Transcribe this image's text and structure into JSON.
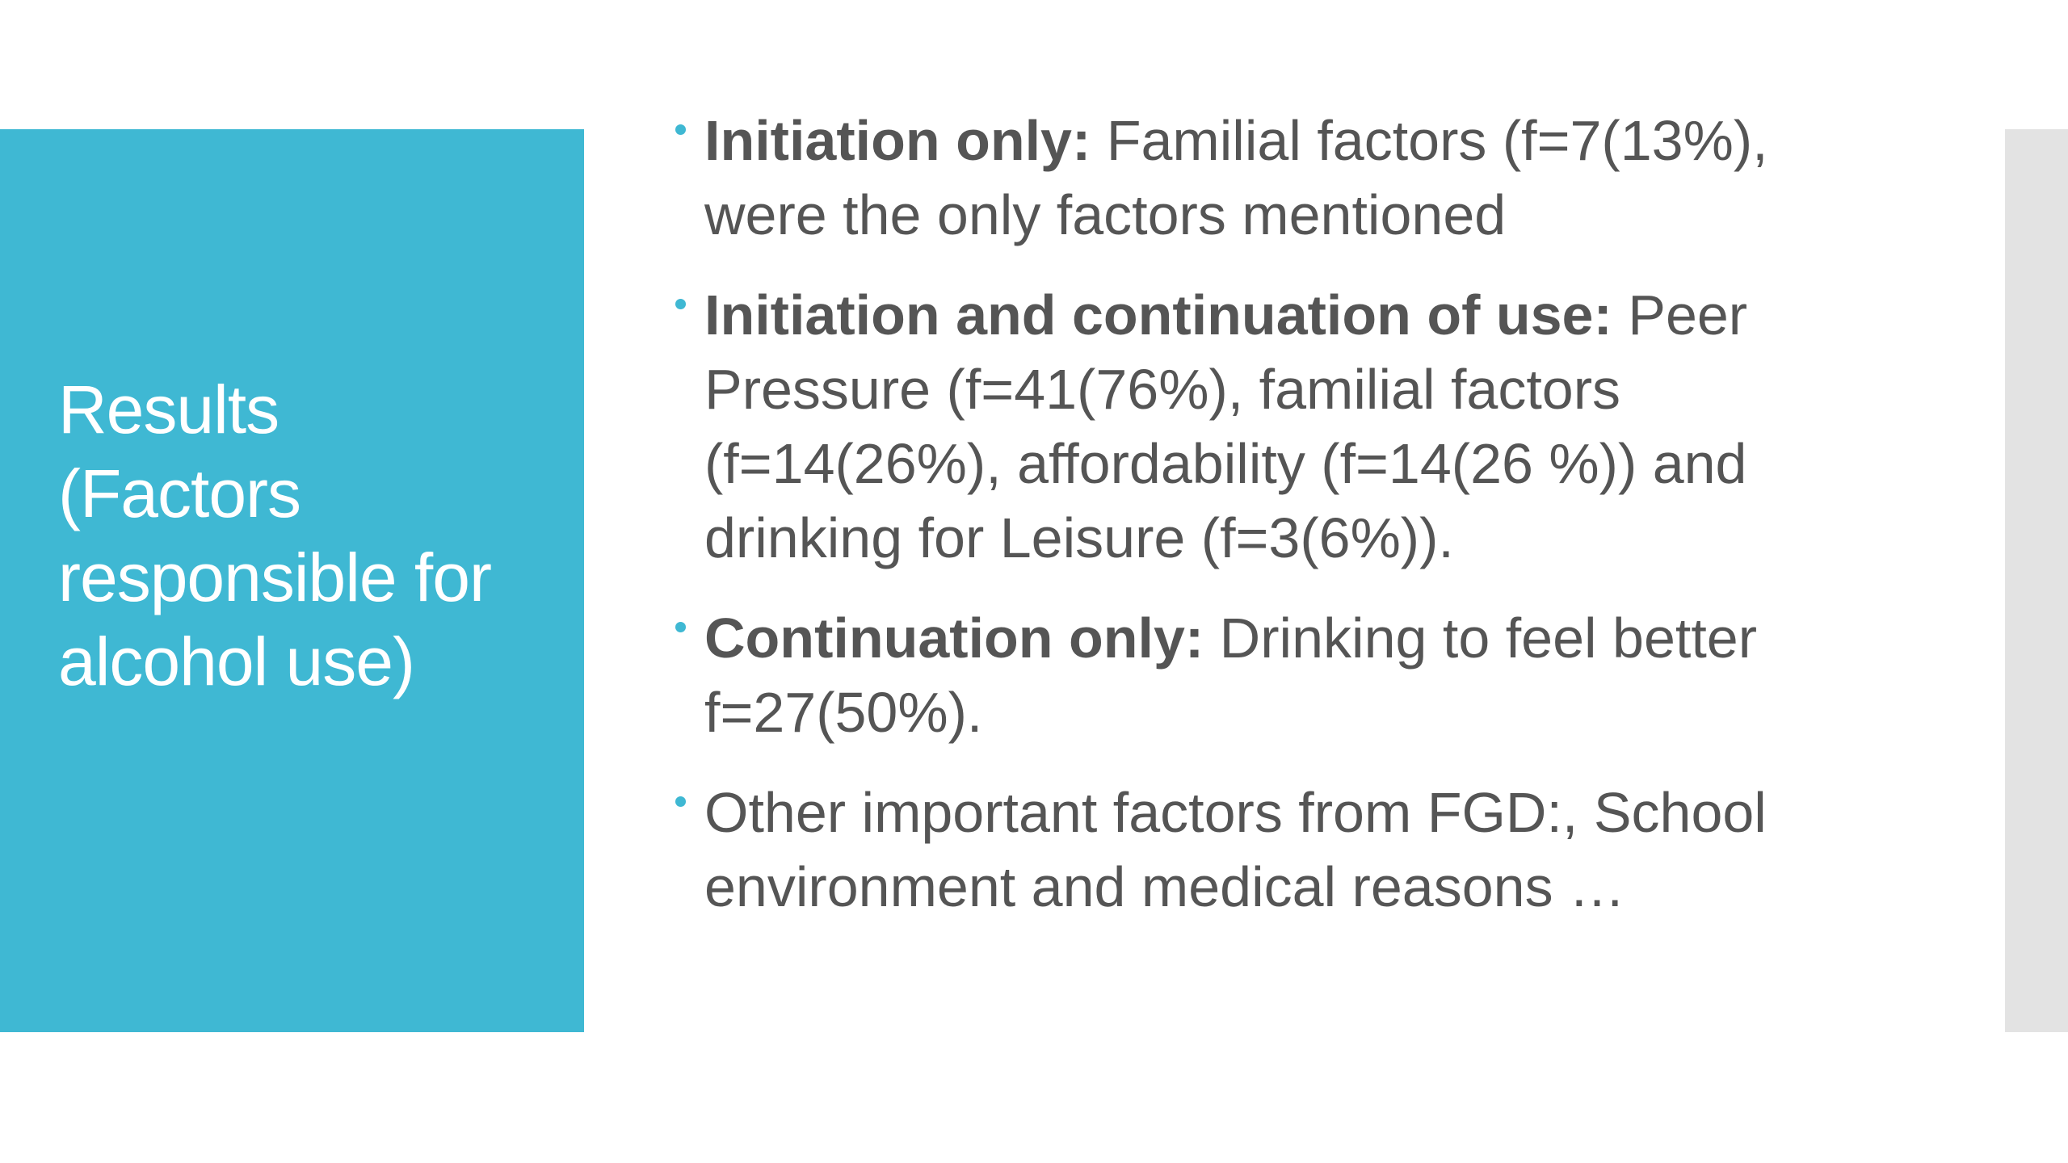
{
  "slide": {
    "title_lines": [
      "Results",
      "(Factors",
      "responsible for",
      "alcohol use)"
    ],
    "bullets": [
      {
        "bold": "Initiation only:",
        "text": "Familial factors (f=7(13%), were the only factors mentioned"
      },
      {
        "bold": "Initiation and continuation of use:",
        "text": "Peer Pressure (f=41(76%), familial factors (f=14(26%), affordability (f=14(26 %)) and drinking for Leisure (f=3(6%))."
      },
      {
        "bold": "Continuation only:",
        "text": "Drinking to feel better f=27(50%)."
      },
      {
        "bold": "",
        "text": "Other important factors from FGD:, School environment and medical reasons …"
      }
    ]
  },
  "colors": {
    "accent": "#3fb8d3",
    "text": "#555555",
    "title_text": "#ffffff",
    "side_strip": "#e3e3e3",
    "background": "#ffffff"
  }
}
